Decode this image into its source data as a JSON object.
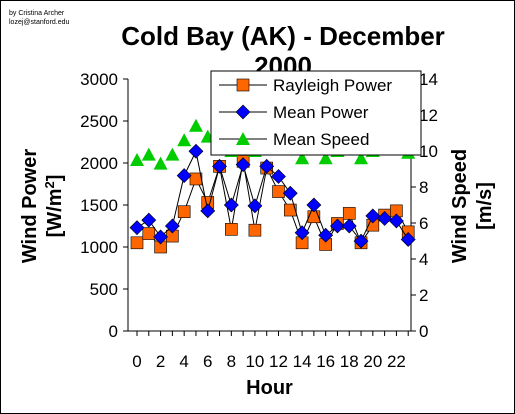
{
  "credit": [
    "by Cristina Archer",
    "lozej@stanford.edu"
  ],
  "chart_data": {
    "type": "line",
    "title_lines": [
      "Cold Bay (AK) - December",
      "2000"
    ],
    "xlabel": "Hour",
    "ylabel_left": {
      "text": "Wind Power",
      "unit_base": "[W/m",
      "unit_sup": "2",
      "unit_close": "]"
    },
    "ylabel_right": "Wind Speed [m/s]",
    "x": [
      0,
      1,
      2,
      3,
      4,
      5,
      6,
      7,
      8,
      9,
      10,
      11,
      12,
      13,
      14,
      15,
      16,
      17,
      18,
      19,
      20,
      21,
      22,
      23
    ],
    "x_ticks": [
      "0",
      "2",
      "4",
      "6",
      "8",
      "10",
      "12",
      "14",
      "16",
      "18",
      "20",
      "22"
    ],
    "y_left_ticks": [
      "0",
      "500",
      "1000",
      "1500",
      "2000",
      "2500",
      "3000"
    ],
    "y_right_ticks": [
      "0",
      "2",
      "4",
      "6",
      "8",
      "10",
      "12",
      "14"
    ],
    "ylim_left": [
      0,
      3000
    ],
    "ylim_right": [
      0,
      14
    ],
    "series": [
      {
        "name": "Rayleigh Power",
        "axis": "left",
        "marker": "square",
        "color": "#ff6600",
        "values": [
          1050,
          1160,
          1000,
          1130,
          1420,
          1810,
          1530,
          1960,
          1210,
          2020,
          1200,
          1940,
          1660,
          1440,
          1050,
          1360,
          1030,
          1280,
          1400,
          1050,
          1260,
          1380,
          1430,
          1180
        ]
      },
      {
        "name": "Mean Power",
        "axis": "left",
        "marker": "diamond",
        "color": "#0000ff",
        "values": [
          1230,
          1320,
          1120,
          1250,
          1850,
          2140,
          1430,
          1960,
          1500,
          1980,
          1490,
          1960,
          1840,
          1640,
          1170,
          1500,
          1140,
          1250,
          1250,
          1070,
          1370,
          1340,
          1310,
          1090
        ]
      },
      {
        "name": "Mean Speed",
        "axis": "right",
        "marker": "triangle",
        "color": "#00cc00",
        "values": [
          9.5,
          9.8,
          9.3,
          9.8,
          10.6,
          11.4,
          10.8,
          11.2,
          10.0,
          11.4,
          10.0,
          11.2,
          10.5,
          10.2,
          9.6,
          10.2,
          9.6,
          10.0,
          10.2,
          9.6,
          10.0,
          10.1,
          10.2,
          9.9
        ]
      }
    ],
    "legend": {
      "placement": "top-right"
    },
    "grid": false
  }
}
